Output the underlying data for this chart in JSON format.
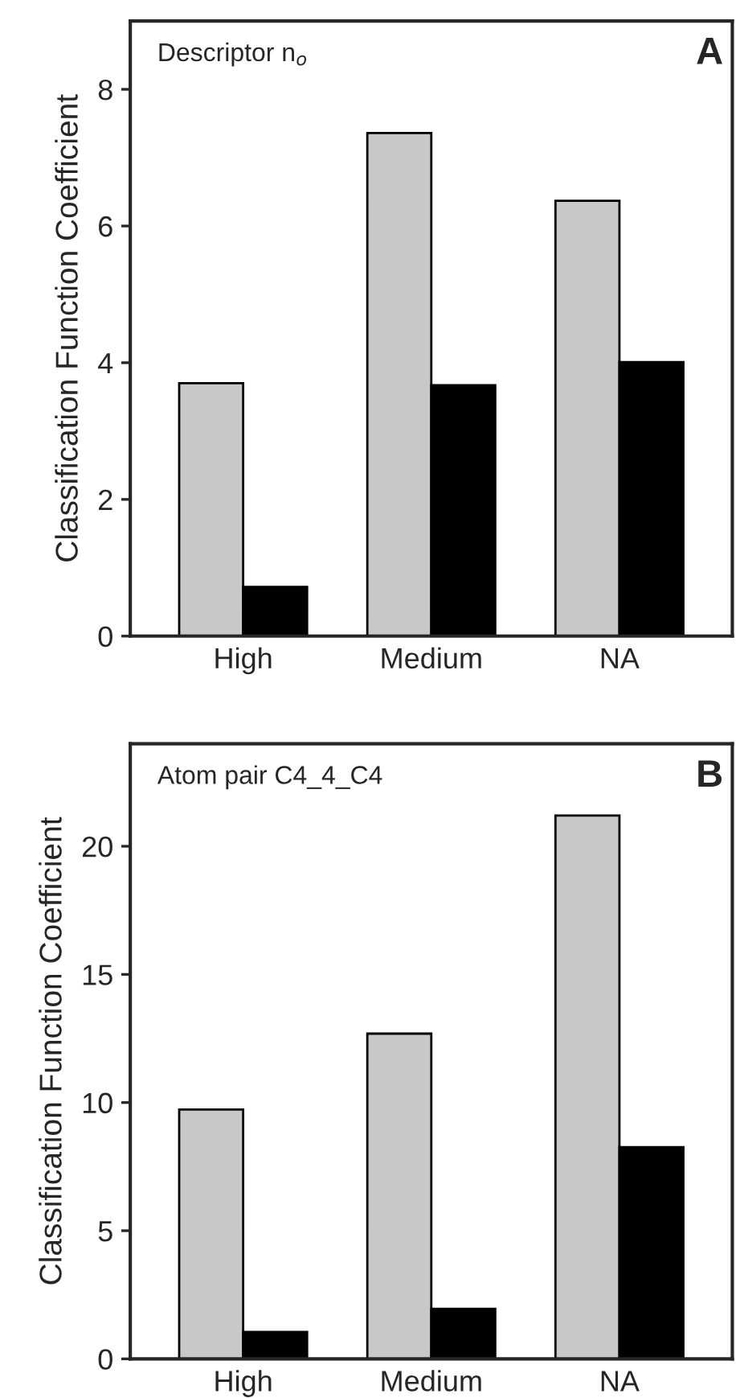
{
  "chart_data": [
    {
      "type": "bar",
      "title": "Descriptor n$_{o}$",
      "ylabel": "Classification Function Coefficient",
      "annotations": [
        "A"
      ],
      "categories": [
        "High",
        "Medium",
        "NA"
      ],
      "series": [
        {
          "color": "#c8c8c8",
          "values": [
            3.7,
            7.36,
            6.37
          ]
        },
        {
          "color": "#000000",
          "values": [
            0.72,
            3.67,
            4.01
          ]
        }
      ],
      "ylim": [
        0,
        9
      ],
      "yticks": [
        0,
        2,
        4,
        6,
        8
      ],
      "grid": false,
      "legend": false
    },
    {
      "type": "bar",
      "title": "Atom pair C4_4_C4",
      "ylabel": "Classification Function Coefficient",
      "annotations": [
        "B"
      ],
      "categories": [
        "High",
        "Medium",
        "NA"
      ],
      "series": [
        {
          "color": "#c8c8c8",
          "values": [
            9.73,
            12.69,
            21.2
          ]
        },
        {
          "color": "#000000",
          "values": [
            1.05,
            1.95,
            8.26
          ]
        }
      ],
      "ylim": [
        0,
        24
      ],
      "yticks": [
        0,
        5,
        10,
        15,
        20
      ],
      "grid": false,
      "legend": false
    }
  ]
}
